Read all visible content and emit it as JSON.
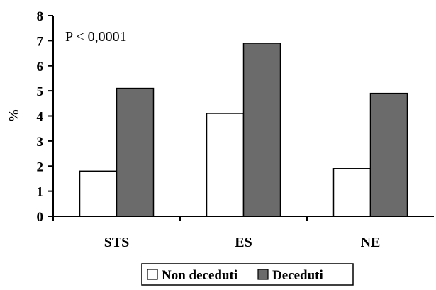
{
  "chart_data": {
    "type": "bar",
    "categories": [
      "STS",
      "ES",
      "NE"
    ],
    "series": [
      {
        "name": "Non deceduti",
        "values": [
          1.8,
          4.1,
          1.9
        ],
        "color": "#ffffff"
      },
      {
        "name": "Deceduti",
        "values": [
          5.1,
          6.9,
          4.9
        ],
        "color": "#6b6b6b"
      }
    ],
    "ylabel": "%",
    "xlabel": "",
    "ylim": [
      0,
      8
    ],
    "yticks": [
      "0",
      "1",
      "2",
      "3",
      "4",
      "5",
      "6",
      "7",
      "8"
    ],
    "annotation": "P < 0,0001",
    "legend_position": "bottom",
    "grid": false
  }
}
